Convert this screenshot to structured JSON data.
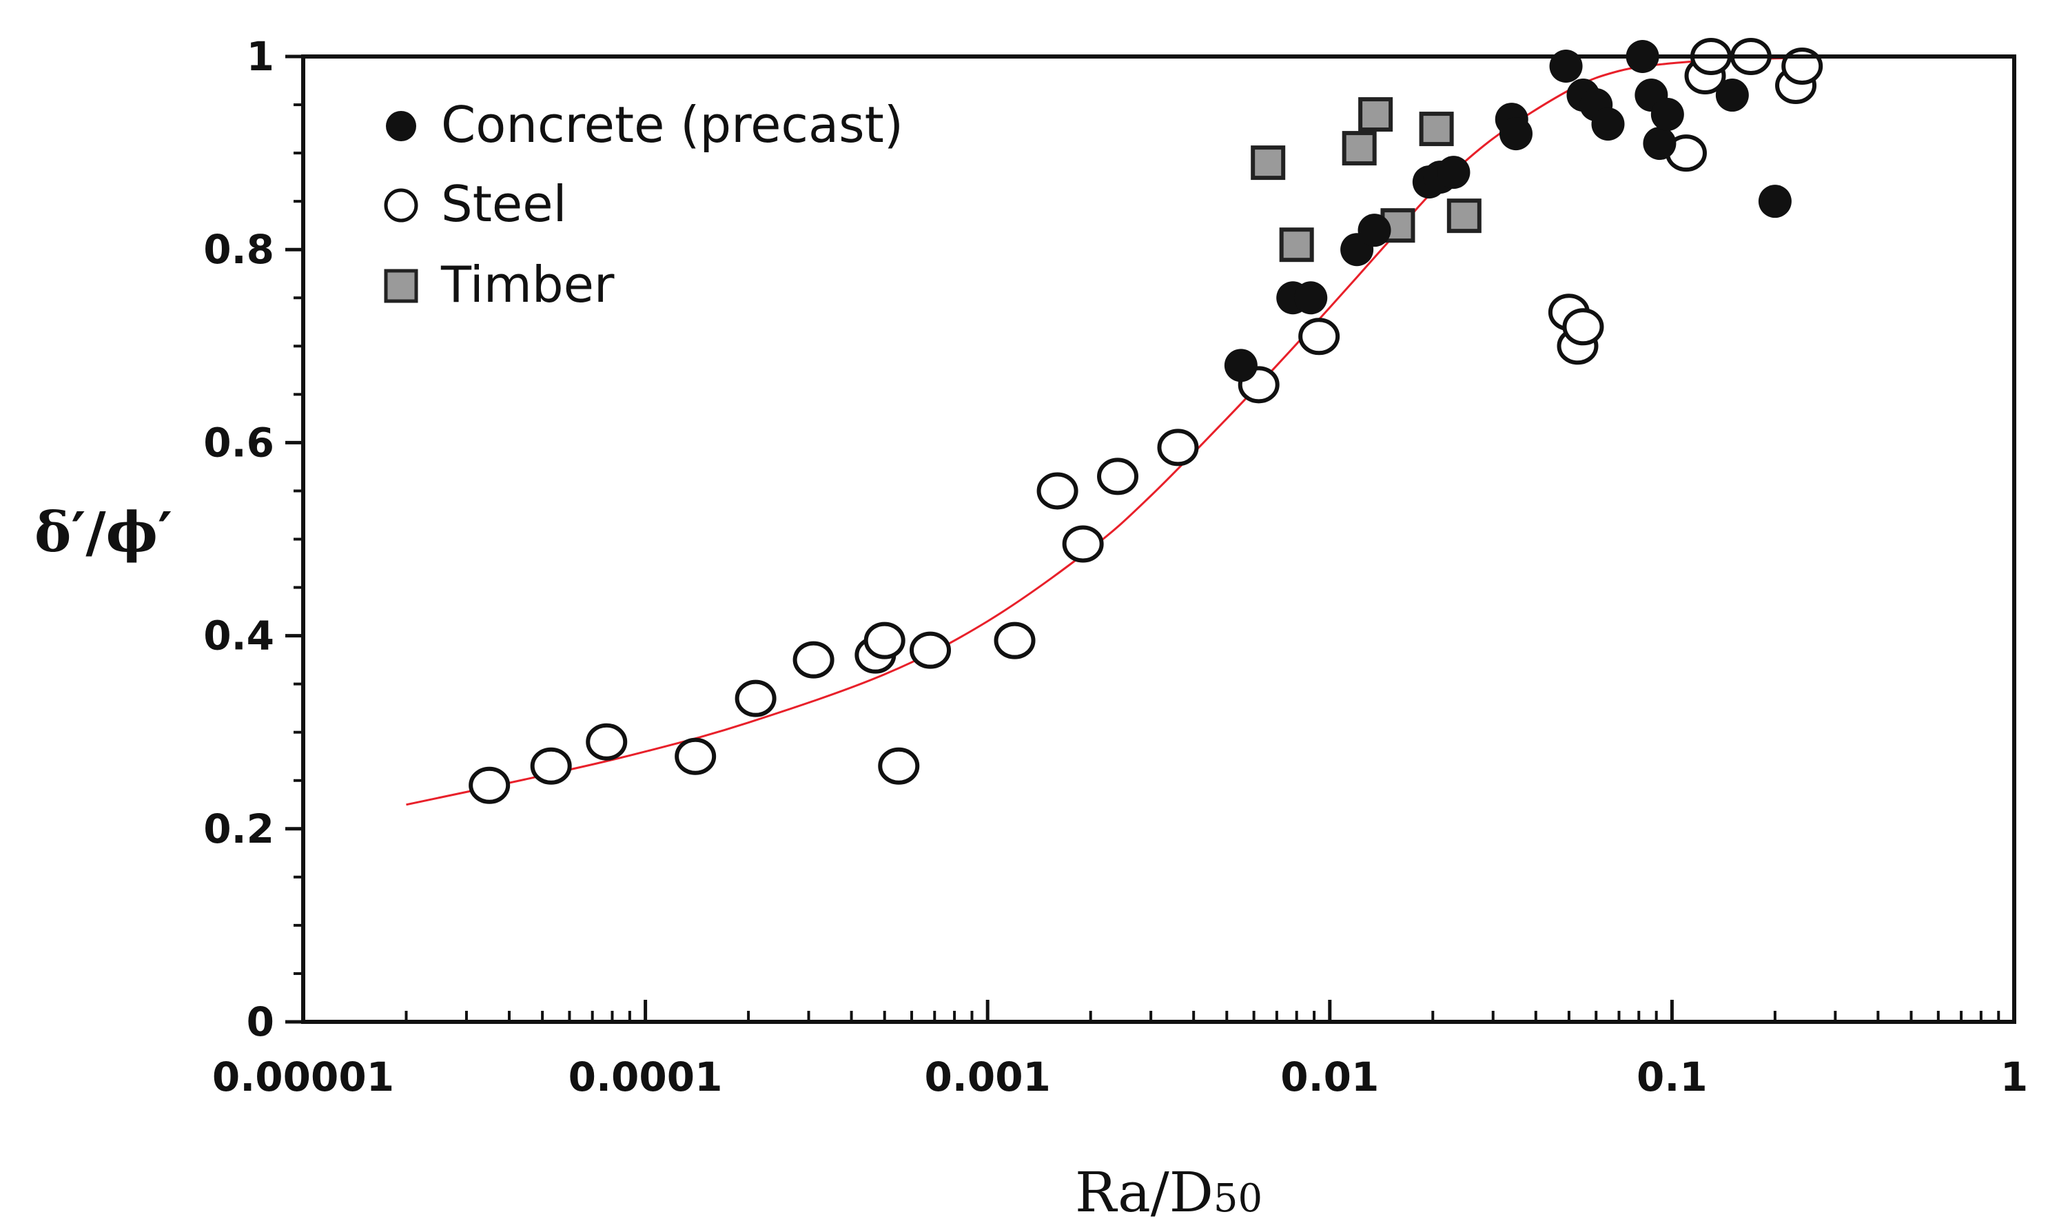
{
  "chart_data": {
    "type": "scatter",
    "title": "",
    "xlabel": "Ra/D",
    "xlabel_sub": "50",
    "ylabel": "δ′/ϕ′",
    "x_scale": "log",
    "xlim": [
      1e-05,
      1
    ],
    "ylim": [
      0,
      1
    ],
    "x_ticks": [
      {
        "value": 1e-05,
        "label": "0.00001"
      },
      {
        "value": 0.0001,
        "label": "0.0001"
      },
      {
        "value": 0.001,
        "label": "0.001"
      },
      {
        "value": 0.01,
        "label": "0.01"
      },
      {
        "value": 0.1,
        "label": "0.1"
      },
      {
        "value": 1,
        "label": "1"
      }
    ],
    "y_ticks": [
      {
        "value": 0,
        "label": "0"
      },
      {
        "value": 0.2,
        "label": "0.2"
      },
      {
        "value": 0.4,
        "label": "0.4"
      },
      {
        "value": 0.6,
        "label": "0.6"
      },
      {
        "value": 0.8,
        "label": "0.8"
      },
      {
        "value": 1,
        "label": "1"
      }
    ],
    "grid": false,
    "legend_position": "top-left",
    "series": [
      {
        "name": "Concrete (precast)",
        "marker": "filled-circle",
        "color": "#111111",
        "points": [
          [
            0.0055,
            0.68
          ],
          [
            0.0078,
            0.75
          ],
          [
            0.0088,
            0.75
          ],
          [
            0.012,
            0.8
          ],
          [
            0.0135,
            0.82
          ],
          [
            0.0195,
            0.87
          ],
          [
            0.021,
            0.875
          ],
          [
            0.023,
            0.88
          ],
          [
            0.034,
            0.935
          ],
          [
            0.035,
            0.92
          ],
          [
            0.049,
            0.99
          ],
          [
            0.055,
            0.96
          ],
          [
            0.06,
            0.95
          ],
          [
            0.065,
            0.93
          ],
          [
            0.082,
            1.0
          ],
          [
            0.087,
            0.96
          ],
          [
            0.092,
            0.91
          ],
          [
            0.097,
            0.94
          ],
          [
            0.15,
            0.96
          ],
          [
            0.2,
            0.85
          ]
        ]
      },
      {
        "name": "Steel",
        "marker": "open-circle",
        "color": "#111111",
        "points": [
          [
            3.5e-05,
            0.245
          ],
          [
            5.3e-05,
            0.265
          ],
          [
            7.7e-05,
            0.29
          ],
          [
            0.00014,
            0.275
          ],
          [
            0.00021,
            0.335
          ],
          [
            0.00031,
            0.375
          ],
          [
            0.00047,
            0.38
          ],
          [
            0.0005,
            0.395
          ],
          [
            0.00055,
            0.265
          ],
          [
            0.00068,
            0.385
          ],
          [
            0.0012,
            0.395
          ],
          [
            0.0016,
            0.55
          ],
          [
            0.0019,
            0.495
          ],
          [
            0.0024,
            0.565
          ],
          [
            0.0036,
            0.595
          ],
          [
            0.0062,
            0.66
          ],
          [
            0.0093,
            0.71
          ],
          [
            0.05,
            0.735
          ],
          [
            0.053,
            0.7
          ],
          [
            0.055,
            0.72
          ],
          [
            0.11,
            0.9
          ],
          [
            0.125,
            0.98
          ],
          [
            0.13,
            1.0
          ],
          [
            0.17,
            1.0
          ],
          [
            0.23,
            0.97
          ],
          [
            0.24,
            0.99
          ]
        ]
      },
      {
        "name": "Timber",
        "marker": "gray-square",
        "color": "#9a9a9a",
        "points": [
          [
            0.0066,
            0.89
          ],
          [
            0.008,
            0.805
          ],
          [
            0.0122,
            0.905
          ],
          [
            0.0136,
            0.94
          ],
          [
            0.0158,
            0.825
          ],
          [
            0.0205,
            0.925
          ],
          [
            0.0247,
            0.835
          ]
        ]
      }
    ],
    "fit_curve": {
      "name": "trend",
      "color": "#e8202a",
      "x": [
        2e-05,
        5e-05,
        0.0001,
        0.0002,
        0.0005,
        0.001,
        0.002,
        0.003,
        0.005,
        0.007,
        0.01,
        0.015,
        0.02,
        0.03,
        0.05,
        0.07,
        0.1,
        0.15,
        0.2,
        0.27
      ],
      "y": [
        0.225,
        0.255,
        0.28,
        0.31,
        0.36,
        0.415,
        0.49,
        0.545,
        0.625,
        0.68,
        0.74,
        0.81,
        0.86,
        0.915,
        0.965,
        0.985,
        0.993,
        0.997,
        0.998,
        0.999
      ]
    }
  }
}
